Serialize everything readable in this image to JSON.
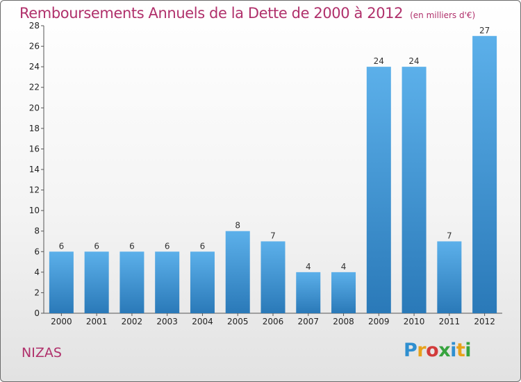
{
  "chart_data": {
    "type": "bar",
    "title": "Remboursements Annuels de la Dette de 2000 à 2012",
    "subtitle": "(en milliers d'€)",
    "categories": [
      "2000",
      "2001",
      "2002",
      "2003",
      "2004",
      "2005",
      "2006",
      "2007",
      "2008",
      "2009",
      "2010",
      "2011",
      "2012"
    ],
    "values": [
      6,
      6,
      6,
      6,
      6,
      8,
      7,
      4,
      4,
      24,
      24,
      7,
      27
    ],
    "ylim": [
      0,
      28
    ],
    "yticks": [
      0,
      2,
      4,
      6,
      8,
      10,
      12,
      14,
      16,
      18,
      20,
      22,
      24,
      26,
      28
    ],
    "grid": false,
    "bar_color": "#3a8fd6"
  },
  "commune": "NIZAS",
  "logo": {
    "text": "Proxiti",
    "letters": [
      {
        "ch": "P",
        "color": "#2f8fd0"
      },
      {
        "ch": "r",
        "color": "#e8a21b"
      },
      {
        "ch": "o",
        "color": "#d23b3b"
      },
      {
        "ch": "x",
        "color": "#36a33e"
      },
      {
        "ch": "i",
        "color": "#2f8fd0"
      },
      {
        "ch": "t",
        "color": "#e8a21b"
      },
      {
        "ch": "i",
        "color": "#36a33e"
      }
    ]
  }
}
